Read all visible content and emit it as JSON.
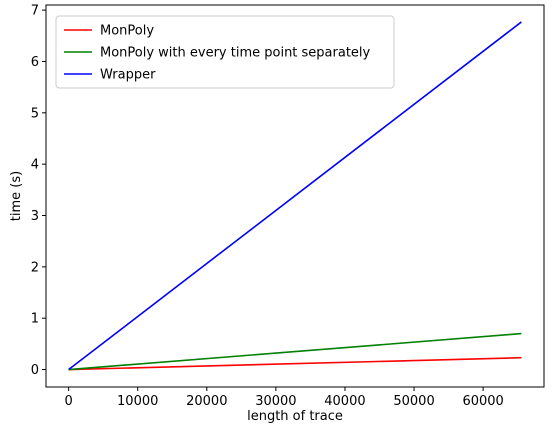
{
  "chart_data": {
    "type": "line",
    "xlabel": "length of trace",
    "ylabel": "time (s)",
    "xlim": [
      -3277,
      68813
    ],
    "ylim": [
      -0.34,
      7.1
    ],
    "xticks": [
      0,
      10000,
      20000,
      30000,
      40000,
      50000,
      60000
    ],
    "yticks": [
      0,
      1,
      2,
      3,
      4,
      5,
      6,
      7
    ],
    "grid": false,
    "legend_position": "top-left",
    "series": [
      {
        "name": "MonPoly",
        "color": "#ff0000",
        "x": [
          0,
          65536
        ],
        "y": [
          0,
          0.23
        ]
      },
      {
        "name": "MonPoly with every time point separately",
        "color": "#008000",
        "x": [
          0,
          65536
        ],
        "y": [
          0,
          0.7
        ]
      },
      {
        "name": "Wrapper",
        "color": "#0000ff",
        "x": [
          0,
          65536
        ],
        "y": [
          0,
          6.77
        ]
      }
    ]
  }
}
